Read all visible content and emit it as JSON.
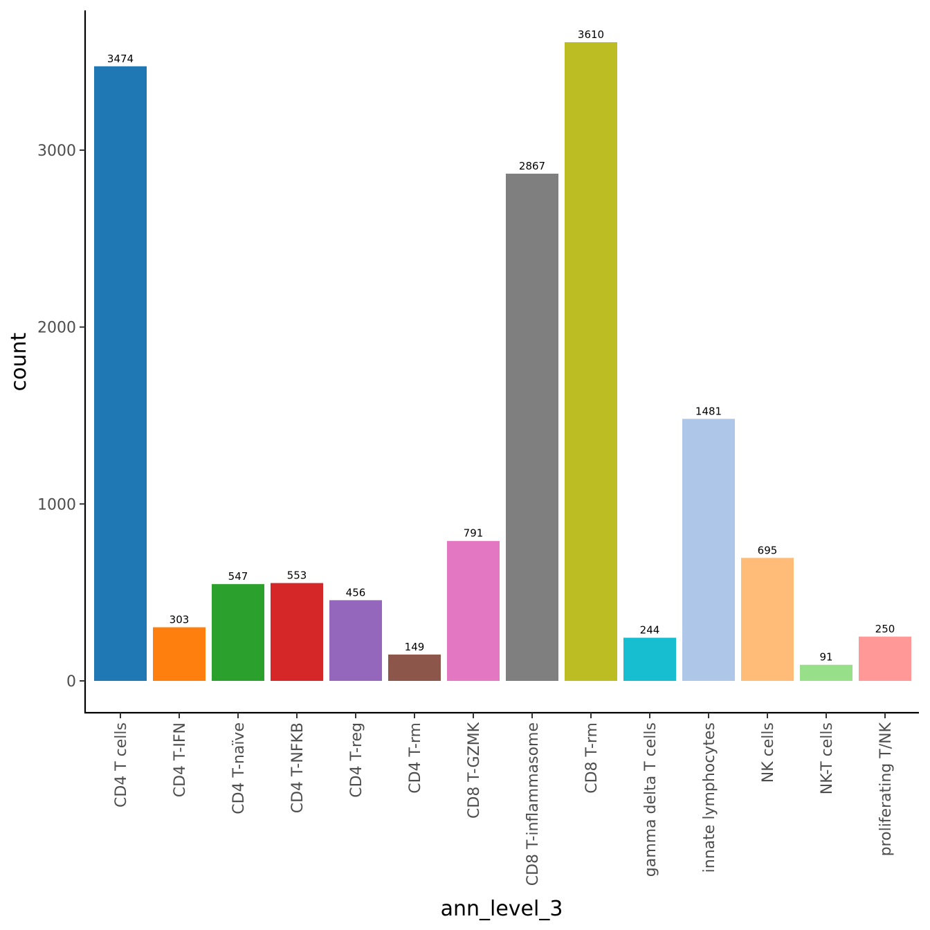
{
  "chart_data": {
    "type": "bar",
    "xlabel": "ann_level_3",
    "ylabel": "count",
    "categories": [
      "CD4 T cells",
      "CD4 T-IFN",
      "CD4 T-naïve",
      "CD4 T-NFKB",
      "CD4 T-reg",
      "CD4 T-rm",
      "CD8 T-GZMK",
      "CD8 T-inflammasome",
      "CD8 T-rm",
      "gamma delta T cells",
      "innate lymphocytes",
      "NK cells",
      "NK-T cells",
      "proliferating T/NK"
    ],
    "values": [
      3474,
      303,
      547,
      553,
      456,
      149,
      791,
      2867,
      3610,
      244,
      1481,
      695,
      91,
      250
    ],
    "data_labels": [
      "3474",
      "303",
      "547",
      "553",
      "456",
      "149",
      "791",
      "2867",
      "3610",
      "244",
      "1481",
      "695",
      "91",
      "250"
    ],
    "colors": [
      "#1f77b4",
      "#ff7f0e",
      "#2ca02c",
      "#d62728",
      "#9467bd",
      "#8c564b",
      "#e377c2",
      "#7f7f7f",
      "#bcbd22",
      "#17becf",
      "#aec7e8",
      "#ffbb78",
      "#98df8a",
      "#ff9896"
    ],
    "yticks": [
      0,
      1000,
      2000,
      3000
    ],
    "ytick_labels": [
      "0",
      "1000",
      "2000",
      "3000"
    ],
    "ylim": [
      -180,
      3790
    ],
    "grid": false,
    "legend": "none"
  }
}
